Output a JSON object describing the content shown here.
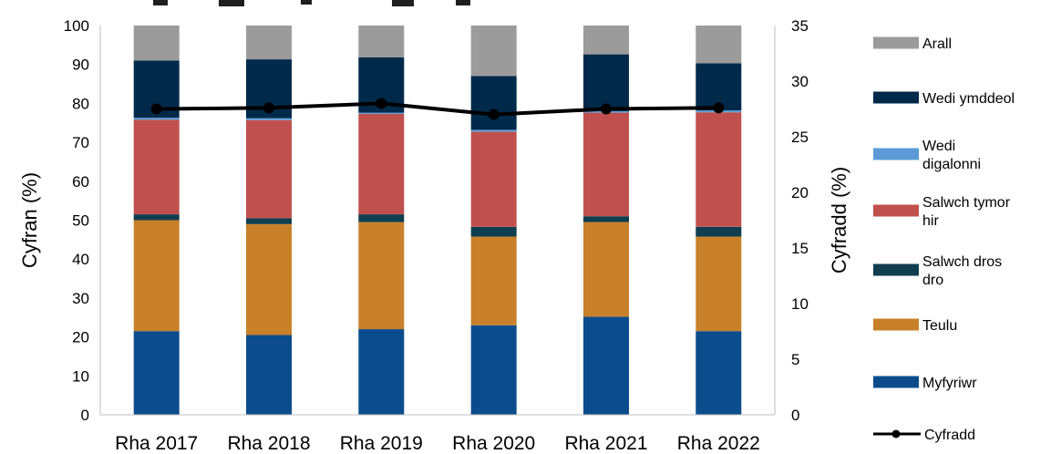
{
  "chart_data": {
    "type": "bar",
    "stacked": true,
    "categories": [
      "Rha 2017",
      "Rha 2018",
      "Rha 2019",
      "Rha 2020",
      "Rha 2021",
      "Rha 2022"
    ],
    "title": "",
    "y_left": {
      "label": "Cyfran (%)",
      "lim": [
        0,
        100
      ],
      "ticks": [
        0,
        10,
        20,
        30,
        40,
        50,
        60,
        70,
        80,
        90,
        100
      ]
    },
    "y_right": {
      "label": "Cyfradd (%)",
      "lim": [
        0,
        35
      ],
      "ticks": [
        0,
        5,
        10,
        15,
        20,
        25,
        30,
        35
      ]
    },
    "grid": false,
    "legend_placement": "right",
    "series": [
      {
        "name": "Myfyriwr",
        "color": "#0b4d8c",
        "values": [
          21.5,
          20.5,
          22,
          23,
          25.2,
          21.5
        ]
      },
      {
        "name": "Teulu",
        "color": "#c8812a",
        "values": [
          28.5,
          28.5,
          27.5,
          22.8,
          24.3,
          24.3
        ]
      },
      {
        "name": "Salwch dros dro",
        "color": "#0f3e4f",
        "values": [
          1.5,
          1.5,
          2,
          2.5,
          1.5,
          2.5
        ]
      },
      {
        "name": "Salwch tymor hir",
        "color": "#c0504d",
        "values": [
          24.3,
          25.2,
          25.8,
          24.4,
          26.6,
          29.4
        ]
      },
      {
        "name": "Wedi digalonni",
        "color": "#5b9bd5",
        "values": [
          0.5,
          0.5,
          0.3,
          0.5,
          0.4,
          0.5
        ]
      },
      {
        "name": "Wedi ymddeol",
        "color": "#012a4a",
        "values": [
          14.7,
          15.1,
          14.2,
          13.8,
          14.6,
          12.1
        ]
      },
      {
        "name": "Arall",
        "color": "#9b9b9b",
        "values": [
          9,
          8.7,
          8.2,
          13,
          7.4,
          9.7
        ]
      }
    ],
    "line_series": {
      "name": "Cyfradd",
      "color": "#000000",
      "axis": "right",
      "values": [
        27.5,
        27.6,
        28,
        27,
        27.5,
        27.6
      ]
    }
  }
}
